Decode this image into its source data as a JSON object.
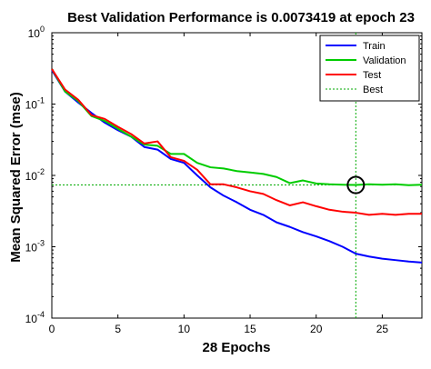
{
  "chart_data": {
    "type": "line",
    "title": "Best Validation Performance is 0.0073419 at epoch 23",
    "xlabel": "28 Epochs",
    "ylabel": "Mean Squared Error  (mse)",
    "xlim": [
      0,
      28
    ],
    "ylim": [
      0.0001,
      1
    ],
    "yscale": "log",
    "x_ticks": [
      0,
      5,
      10,
      15,
      20,
      25
    ],
    "y_ticks": [
      {
        "value": 1,
        "base": "10",
        "exp": "0"
      },
      {
        "value": 0.1,
        "base": "10",
        "exp": "-1"
      },
      {
        "value": 0.01,
        "base": "10",
        "exp": "-2"
      },
      {
        "value": 0.001,
        "base": "10",
        "exp": "-3"
      },
      {
        "value": 0.0001,
        "base": "10",
        "exp": "-4"
      }
    ],
    "legend_position": "top-right",
    "x": [
      0,
      1,
      2,
      3,
      4,
      5,
      6,
      7,
      8,
      9,
      10,
      11,
      12,
      13,
      14,
      15,
      16,
      17,
      18,
      19,
      20,
      21,
      22,
      23,
      24,
      25,
      26,
      27,
      28
    ],
    "series": [
      {
        "name": "Train",
        "color": "#0000ff",
        "style": "solid",
        "values": [
          0.3,
          0.15,
          0.105,
          0.075,
          0.055,
          0.043,
          0.035,
          0.025,
          0.023,
          0.017,
          0.015,
          0.01,
          0.0068,
          0.0052,
          0.0042,
          0.0033,
          0.0028,
          0.0022,
          0.0019,
          0.0016,
          0.0014,
          0.0012,
          0.001,
          0.0008,
          0.00073,
          0.00068,
          0.00065,
          0.00062,
          0.0006
        ]
      },
      {
        "name": "Validation",
        "color": "#00cc00",
        "style": "solid",
        "values": [
          0.31,
          0.15,
          0.11,
          0.068,
          0.058,
          0.045,
          0.035,
          0.027,
          0.026,
          0.02,
          0.02,
          0.015,
          0.013,
          0.0125,
          0.0115,
          0.011,
          0.0105,
          0.0095,
          0.0078,
          0.0085,
          0.0077,
          0.0075,
          0.0074,
          0.0073419,
          0.0075,
          0.0074,
          0.0075,
          0.0073,
          0.0074
        ]
      },
      {
        "name": "Test",
        "color": "#ff0000",
        "style": "solid",
        "values": [
          0.31,
          0.16,
          0.115,
          0.07,
          0.062,
          0.048,
          0.038,
          0.028,
          0.03,
          0.018,
          0.016,
          0.012,
          0.0075,
          0.0075,
          0.0068,
          0.006,
          0.0055,
          0.0045,
          0.0038,
          0.0042,
          0.0037,
          0.0033,
          0.0031,
          0.003,
          0.0028,
          0.0029,
          0.0028,
          0.0029,
          0.0029
        ]
      }
    ],
    "best": {
      "name": "Best",
      "color": "#00aa00",
      "style": "dotted",
      "epoch": 23,
      "value": 0.0073419
    }
  }
}
